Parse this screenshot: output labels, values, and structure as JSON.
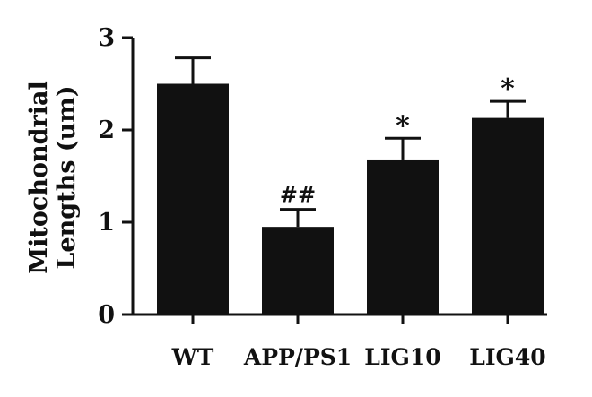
{
  "chart_data": {
    "type": "bar",
    "categories": [
      "WT",
      "APP/PS1",
      "LIG10",
      "LIG40"
    ],
    "values": [
      2.5,
      0.95,
      1.68,
      2.13
    ],
    "errors": [
      0.28,
      0.19,
      0.23,
      0.18
    ],
    "significance": [
      "",
      "##",
      "*",
      "*"
    ],
    "ylabel_lines": [
      "Mitochondrial",
      "Lengths (um)"
    ],
    "yticks": [
      0,
      1,
      2,
      3
    ],
    "ylim": [
      0,
      3
    ],
    "grid": false,
    "colors": {
      "bar": "#111111",
      "axis": "#111111"
    }
  }
}
